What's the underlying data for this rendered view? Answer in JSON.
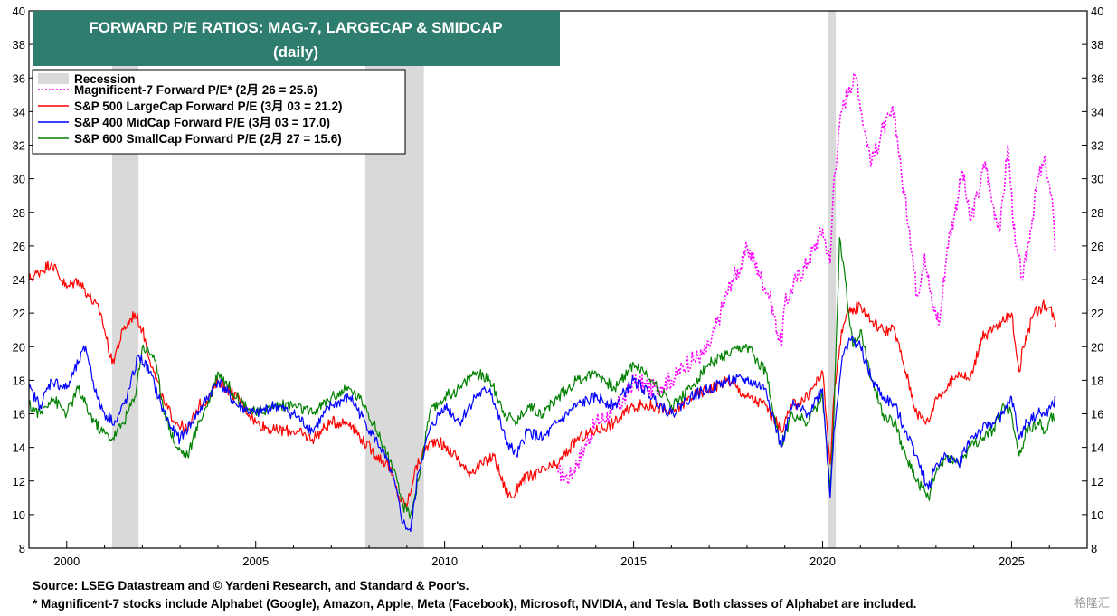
{
  "chart_data": {
    "type": "line",
    "title": "FORWARD P/E RATIOS: MAG-7, LARGECAP & SMIDCAP",
    "subtitle": "(daily)",
    "xlim": [
      1999.0,
      2027.0
    ],
    "ylim": [
      8,
      40
    ],
    "x_ticks": [
      "2000",
      "2005",
      "2010",
      "2015",
      "2020",
      "2025"
    ],
    "y_ticks": [
      "8",
      "10",
      "12",
      "14",
      "16",
      "18",
      "20",
      "22",
      "24",
      "26",
      "28",
      "30",
      "32",
      "34",
      "36",
      "38",
      "40"
    ],
    "recessions": [
      [
        2001.2,
        2001.9
      ],
      [
        2007.9,
        2009.45
      ],
      [
        2020.15,
        2020.35
      ]
    ],
    "legend": {
      "placement": "top-left",
      "recession_label": "Recession",
      "recession_color": "#d9d9d9"
    },
    "series": [
      {
        "name": "Magnificent-7 Forward P/E* (2月 26 = 25.6)",
        "color": "#ff00ff",
        "style": "dotted",
        "x": [
          2013.0,
          2013.3,
          2013.7,
          2014.0,
          2014.4,
          2014.8,
          2015.0,
          2015.5,
          2016.0,
          2016.4,
          2016.8,
          2017.0,
          2017.3,
          2017.6,
          2017.9,
          2018.0,
          2018.3,
          2018.6,
          2018.9,
          2019.0,
          2019.3,
          2019.6,
          2019.9,
          2020.0,
          2020.2,
          2020.3,
          2020.5,
          2020.7,
          2020.9,
          2021.1,
          2021.3,
          2021.6,
          2021.9,
          2022.1,
          2022.3,
          2022.5,
          2022.7,
          2022.9,
          2023.1,
          2023.3,
          2023.5,
          2023.7,
          2023.9,
          2024.1,
          2024.3,
          2024.5,
          2024.7,
          2024.9,
          2025.1,
          2025.3,
          2025.5,
          2025.7,
          2025.9,
          2026.1,
          2026.15
        ],
        "values": [
          12.5,
          12.2,
          14.0,
          15.5,
          16.0,
          17.0,
          18.0,
          17.5,
          18.0,
          19.0,
          19.5,
          20.0,
          22.0,
          24.0,
          25.0,
          26.0,
          24.5,
          23.0,
          20.0,
          22.5,
          24.0,
          25.0,
          26.5,
          27.0,
          25.0,
          30.0,
          34.0,
          35.5,
          36.0,
          33.0,
          31.0,
          33.0,
          34.0,
          30.0,
          27.0,
          23.0,
          25.5,
          22.5,
          21.5,
          26.0,
          28.0,
          30.5,
          27.5,
          29.0,
          31.0,
          28.5,
          27.0,
          32.0,
          26.0,
          24.0,
          27.0,
          30.0,
          31.0,
          28.0,
          25.6
        ]
      },
      {
        "name": "S&P 500 LargeCap Forward P/E (3月 03 = 21.2)",
        "color": "#ff0000",
        "style": "solid",
        "x": [
          1999.0,
          1999.3,
          1999.6,
          2000.0,
          2000.3,
          2000.6,
          2000.9,
          2001.2,
          2001.5,
          2001.8,
          2002.0,
          2002.3,
          2002.6,
          2002.9,
          2003.2,
          2003.5,
          2003.8,
          2004.0,
          2004.5,
          2005.0,
          2005.5,
          2006.0,
          2006.5,
          2007.0,
          2007.5,
          2007.8,
          2008.2,
          2008.5,
          2008.8,
          2009.0,
          2009.2,
          2009.5,
          2009.8,
          2010.0,
          2010.3,
          2010.6,
          2011.0,
          2011.3,
          2011.6,
          2011.8,
          2012.0,
          2012.5,
          2013.0,
          2013.5,
          2014.0,
          2014.5,
          2015.0,
          2015.5,
          2016.0,
          2016.5,
          2017.0,
          2017.5,
          2018.0,
          2018.5,
          2018.9,
          2019.2,
          2019.6,
          2020.0,
          2020.2,
          2020.3,
          2020.5,
          2020.7,
          2021.0,
          2021.3,
          2021.6,
          2021.9,
          2022.2,
          2022.5,
          2022.8,
          2023.0,
          2023.3,
          2023.6,
          2023.9,
          2024.2,
          2024.5,
          2024.8,
          2025.0,
          2025.2,
          2025.3,
          2025.6,
          2025.9,
          2026.1,
          2026.17
        ],
        "values": [
          24.0,
          24.5,
          25.0,
          23.5,
          24.0,
          23.0,
          22.0,
          19.0,
          21.0,
          22.0,
          21.0,
          18.5,
          16.5,
          15.5,
          15.0,
          16.5,
          17.0,
          18.0,
          17.0,
          15.5,
          15.0,
          15.0,
          14.5,
          15.5,
          15.5,
          14.5,
          13.5,
          13.0,
          11.0,
          10.5,
          12.5,
          14.0,
          14.5,
          14.0,
          13.5,
          12.5,
          13.0,
          13.5,
          11.5,
          11.0,
          12.0,
          12.5,
          13.0,
          14.5,
          15.0,
          15.5,
          16.5,
          16.5,
          16.0,
          17.0,
          17.5,
          18.0,
          17.0,
          16.5,
          15.0,
          16.5,
          17.0,
          18.5,
          13.0,
          17.0,
          21.0,
          22.0,
          22.5,
          21.5,
          21.0,
          21.0,
          18.5,
          16.0,
          15.5,
          17.0,
          17.5,
          18.5,
          18.0,
          20.5,
          21.0,
          21.5,
          22.0,
          18.5,
          20.0,
          22.0,
          22.5,
          22.0,
          21.2
        ]
      },
      {
        "name": "S&P 400 MidCap Forward P/E (3月 03 = 17.0)",
        "color": "#0000ff",
        "style": "solid",
        "x": [
          1999.0,
          1999.3,
          1999.6,
          2000.0,
          2000.3,
          2000.5,
          2000.8,
          2001.0,
          2001.3,
          2001.6,
          2001.9,
          2002.2,
          2002.5,
          2002.8,
          2003.0,
          2003.3,
          2003.6,
          2004.0,
          2004.5,
          2005.0,
          2005.5,
          2006.0,
          2006.5,
          2007.0,
          2007.5,
          2007.9,
          2008.3,
          2008.6,
          2008.9,
          2009.1,
          2009.3,
          2009.6,
          2010.0,
          2010.4,
          2010.8,
          2011.2,
          2011.6,
          2011.9,
          2012.2,
          2012.6,
          2013.0,
          2013.5,
          2014.0,
          2014.5,
          2015.0,
          2015.5,
          2016.0,
          2016.5,
          2017.0,
          2017.5,
          2018.0,
          2018.5,
          2018.9,
          2019.2,
          2019.6,
          2020.0,
          2020.2,
          2020.3,
          2020.5,
          2020.7,
          2021.0,
          2021.3,
          2021.6,
          2021.9,
          2022.2,
          2022.5,
          2022.8,
          2023.0,
          2023.3,
          2023.6,
          2023.9,
          2024.2,
          2024.5,
          2024.8,
          2025.0,
          2025.2,
          2025.4,
          2025.7,
          2025.9,
          2026.1,
          2026.17
        ],
        "values": [
          17.5,
          16.5,
          18.0,
          17.5,
          19.0,
          20.0,
          17.0,
          16.0,
          15.5,
          17.0,
          19.5,
          18.5,
          16.5,
          15.0,
          14.5,
          15.5,
          16.5,
          18.0,
          16.5,
          16.0,
          16.5,
          16.0,
          15.0,
          16.5,
          17.0,
          15.5,
          14.0,
          12.5,
          9.5,
          9.0,
          12.5,
          15.0,
          16.5,
          15.5,
          17.0,
          17.5,
          14.5,
          13.5,
          15.0,
          14.5,
          15.5,
          16.5,
          17.0,
          16.5,
          18.0,
          17.0,
          16.0,
          17.0,
          17.5,
          18.0,
          18.0,
          17.5,
          14.0,
          16.5,
          16.0,
          17.5,
          11.0,
          15.0,
          19.0,
          20.5,
          20.0,
          18.0,
          17.0,
          16.5,
          15.0,
          13.5,
          11.5,
          13.0,
          13.5,
          13.0,
          14.5,
          15.0,
          15.5,
          16.0,
          17.0,
          14.5,
          15.5,
          16.0,
          16.0,
          16.5,
          17.0
        ]
      },
      {
        "name": "S&P 600 SmallCap Forward P/E (2月 27 = 15.6)",
        "color": "#008000",
        "style": "solid",
        "x": [
          1999.0,
          1999.3,
          1999.6,
          2000.0,
          2000.3,
          2000.6,
          2000.9,
          2001.2,
          2001.5,
          2001.8,
          2002.0,
          2002.3,
          2002.6,
          2002.9,
          2003.2,
          2003.5,
          2003.8,
          2004.0,
          2004.5,
          2005.0,
          2005.5,
          2006.0,
          2006.5,
          2007.0,
          2007.5,
          2007.9,
          2008.3,
          2008.6,
          2008.9,
          2009.1,
          2009.3,
          2009.6,
          2010.0,
          2010.4,
          2010.8,
          2011.2,
          2011.6,
          2011.9,
          2012.2,
          2012.6,
          2013.0,
          2013.5,
          2014.0,
          2014.5,
          2015.0,
          2015.5,
          2016.0,
          2016.5,
          2017.0,
          2017.5,
          2018.0,
          2018.5,
          2018.9,
          2019.2,
          2019.6,
          2020.0,
          2020.2,
          2020.3,
          2020.45,
          2020.6,
          2020.8,
          2021.0,
          2021.3,
          2021.6,
          2021.9,
          2022.2,
          2022.5,
          2022.8,
          2023.0,
          2023.3,
          2023.6,
          2023.9,
          2024.2,
          2024.5,
          2024.8,
          2025.0,
          2025.2,
          2025.4,
          2025.7,
          2025.9,
          2026.1,
          2026.15
        ],
        "values": [
          16.5,
          16.0,
          17.0,
          16.0,
          17.5,
          16.0,
          15.0,
          14.5,
          15.5,
          17.0,
          20.0,
          19.5,
          16.0,
          14.0,
          13.5,
          15.5,
          17.0,
          18.5,
          17.0,
          16.0,
          16.5,
          16.5,
          16.0,
          17.0,
          17.5,
          16.5,
          14.5,
          13.0,
          10.5,
          10.0,
          12.0,
          16.0,
          17.0,
          17.5,
          18.5,
          18.0,
          16.0,
          15.5,
          16.5,
          16.0,
          17.0,
          18.0,
          18.5,
          17.5,
          19.0,
          18.0,
          16.5,
          17.5,
          19.0,
          19.5,
          20.0,
          18.5,
          14.0,
          16.0,
          15.5,
          17.0,
          11.5,
          16.0,
          26.5,
          24.0,
          20.0,
          21.0,
          18.0,
          16.0,
          15.5,
          13.5,
          12.0,
          11.0,
          12.5,
          13.5,
          13.0,
          14.0,
          14.5,
          15.0,
          16.5,
          16.0,
          13.5,
          15.0,
          15.5,
          15.0,
          16.0,
          15.6
        ]
      }
    ]
  },
  "footer": {
    "source": "Source: LSEG Datastream and © Yardeni Research, and Standard & Poor's.",
    "footnote": "* Magnificent-7 stocks include Alphabet (Google), Amazon, Apple, Meta (Facebook), Microsoft, NVIDIA, and Tesla. Both classes of Alphabet are included.",
    "watermark": "格隆汇"
  }
}
